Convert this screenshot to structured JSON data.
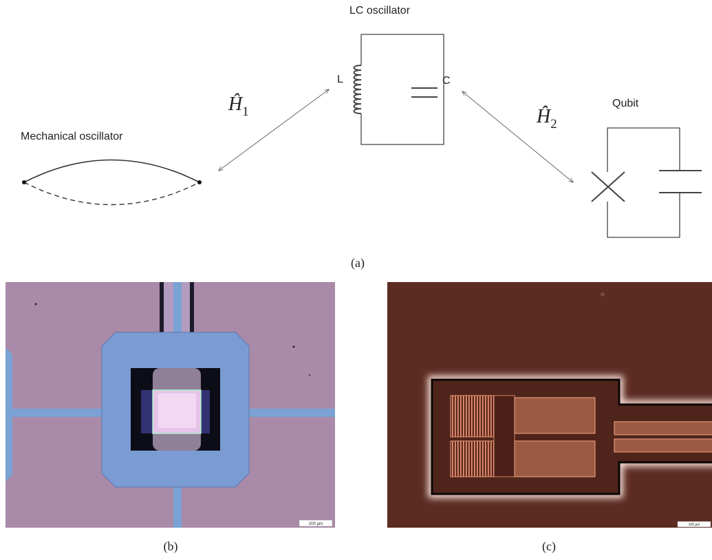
{
  "panel_a": {
    "label": "(a)",
    "lc_oscillator": {
      "title": "LC oscillator",
      "inductor_label": "L",
      "capacitor_label": "C"
    },
    "mechanical_oscillator": {
      "title": "Mechanical oscillator"
    },
    "qubit": {
      "title": "Qubit"
    },
    "h1": {
      "symbol": "Ĥ",
      "subscript": "1"
    },
    "h2": {
      "symbol": "Ĥ",
      "subscript": "2"
    }
  },
  "panel_b": {
    "label": "(b)",
    "scale_bar": "200 µm"
  },
  "panel_c": {
    "label": "(c)",
    "scale_bar": "100 µm"
  }
}
